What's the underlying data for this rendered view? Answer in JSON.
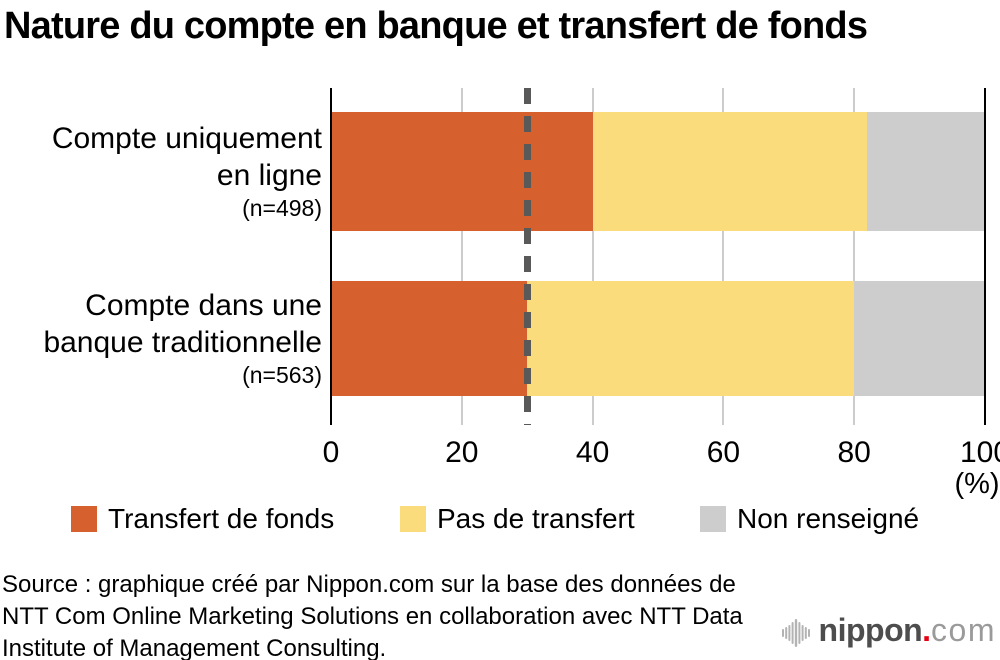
{
  "title": "Nature du compte en banque et transfert de fonds",
  "chart_data": {
    "type": "bar",
    "orientation": "horizontal",
    "stacked": true,
    "categories": [
      {
        "lines": [
          "Compte uniquement",
          "en ligne"
        ],
        "n": "(n=498)"
      },
      {
        "lines": [
          "Compte dans une",
          "banque traditionnelle"
        ],
        "n": "(n=563)"
      }
    ],
    "series": [
      {
        "name": "Transfert de fonds",
        "color": "#d7602f",
        "values": [
          40,
          30
        ]
      },
      {
        "name": "Pas de transfert",
        "color": "#fbdc7d",
        "values": [
          42,
          50
        ]
      },
      {
        "name": "Non renseigné",
        "color": "#cdcdcd",
        "values": [
          18,
          20
        ]
      }
    ],
    "xlim": [
      0,
      100
    ],
    "xticks": [
      "0",
      "20",
      "40",
      "60",
      "80",
      "100"
    ],
    "x_unit_label": "(%)",
    "reference_line": {
      "x": 30,
      "style": "dashed",
      "color": "#595959"
    },
    "grid_color": "#cccccc",
    "axis_color": "#000000",
    "legend_position": "bottom",
    "grid": true
  },
  "source": {
    "lines": [
      "Source : graphique créé par Nippon.com sur la base des données de",
      "NTT Com Online Marketing Solutions en collaboration avec NTT Data",
      "Institute of Management Consulting."
    ]
  },
  "logo": {
    "name": "nippon",
    "dot": ".",
    "tld": "com",
    "dot_color": "#e60012",
    "icon": "waveform-icon"
  }
}
